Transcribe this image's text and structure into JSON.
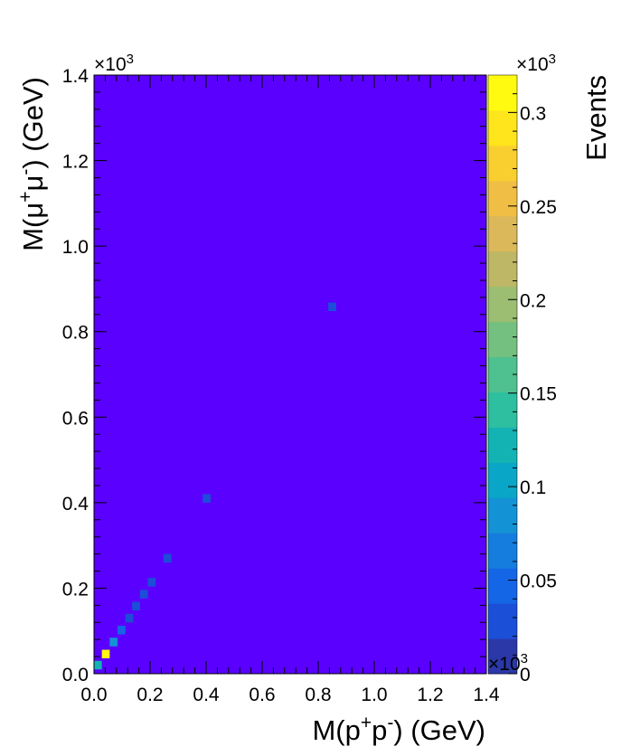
{
  "chart_data": {
    "type": "heatmap",
    "title": "",
    "xlabel": {
      "base": "M(p",
      "sup1": "+",
      "mid": "p",
      "sup2": "-",
      "end": ") (GeV)"
    },
    "ylabel": {
      "base": "M(μ",
      "sup1": "+",
      "mid": "μ",
      "sup2": "-",
      "end": ") (GeV)"
    },
    "zlabel": "Events",
    "axis_multiplier": {
      "base": "×10",
      "exp": "3"
    },
    "xlim": [
      0,
      1.4
    ],
    "ylim": [
      0,
      1.4
    ],
    "zlim": [
      0,
      0.32
    ],
    "x_ticks": [
      "0.0",
      "0.2",
      "0.4",
      "0.6",
      "0.8",
      "1.0",
      "1.2",
      "1.4"
    ],
    "y_ticks": [
      "0.0",
      "0.2",
      "0.4",
      "0.6",
      "0.8",
      "1.0",
      "1.2",
      "1.4"
    ],
    "z_ticks": [
      "0",
      "0.05",
      "0.1",
      "0.15",
      "0.2",
      "0.25",
      "0.3"
    ],
    "bins": {
      "nx": 50,
      "ny": 70
    },
    "background_value": 0,
    "cells": [
      {
        "x": 0.014,
        "y": 0.02,
        "z": 0.12
      },
      {
        "x": 0.042,
        "y": 0.046,
        "z": 0.32
      },
      {
        "x": 0.07,
        "y": 0.074,
        "z": 0.09
      },
      {
        "x": 0.098,
        "y": 0.102,
        "z": 0.05
      },
      {
        "x": 0.126,
        "y": 0.13,
        "z": 0.03
      },
      {
        "x": 0.15,
        "y": 0.158,
        "z": 0.025
      },
      {
        "x": 0.178,
        "y": 0.186,
        "z": 0.02
      },
      {
        "x": 0.206,
        "y": 0.214,
        "z": 0.02
      },
      {
        "x": 0.262,
        "y": 0.27,
        "z": 0.02
      },
      {
        "x": 0.402,
        "y": 0.41,
        "z": 0.02
      },
      {
        "x": 0.85,
        "y": 0.858,
        "z": 0.02
      }
    ],
    "palette": [
      "#5a00ff",
      "#2a38a8",
      "#1b4fd8",
      "#1566e6",
      "#147dde",
      "#1492d6",
      "#0aa6c8",
      "#13b3b4",
      "#2ebea0",
      "#4fc08f",
      "#74c080",
      "#9bbe72",
      "#bdb766",
      "#dbb95a",
      "#f0be44",
      "#f9cf30",
      "#ffe51c",
      "#fffa0f"
    ],
    "grid": false,
    "legend": "colorbar-right"
  }
}
